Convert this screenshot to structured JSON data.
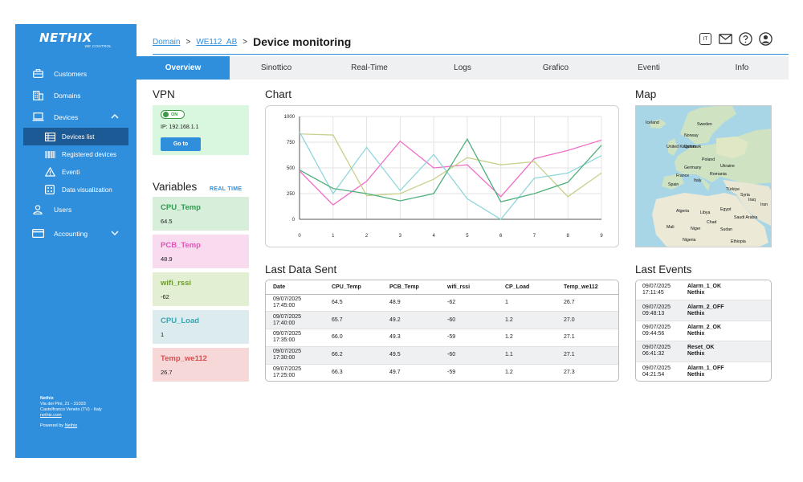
{
  "sidebar": {
    "logo": "NETHIX",
    "logo_tag": "WE CONTROL",
    "items": [
      {
        "label": "Customers"
      },
      {
        "label": "Domains"
      },
      {
        "label": "Devices"
      },
      {
        "label": "Users"
      },
      {
        "label": "Accounting"
      }
    ],
    "sub_items": [
      {
        "label": "Devices list"
      },
      {
        "label": "Registered devices"
      },
      {
        "label": "Eventi"
      },
      {
        "label": "Data visualization"
      }
    ],
    "footer": {
      "company": "Nethix",
      "address1": "Via dei Pini, 21 - 31033",
      "address2": "Castelfranco Veneto (TV) - Italy",
      "site": "nethix.com",
      "powered_prefix": "Powered by",
      "powered_link": "Nethix"
    }
  },
  "header": {
    "crumb1": "Domain",
    "crumb2": "WE112_AB",
    "sep": ">",
    "title": "Device monitoring",
    "lang": "IT"
  },
  "tabs": [
    "Overview",
    "Sinottico",
    "Real-Time",
    "Logs",
    "Grafico",
    "Eventi",
    "Info"
  ],
  "vpn": {
    "title": "VPN",
    "toggle": "ON",
    "ip": "IP: 192.168.1.1",
    "button": "Go to"
  },
  "variables": {
    "title": "Variables",
    "link": "REAL TIME",
    "items": [
      {
        "name": "CPU_Temp",
        "value": "64.5"
      },
      {
        "name": "PCB_Temp",
        "value": "48.9"
      },
      {
        "name": "wifi_rssi",
        "value": "-62"
      },
      {
        "name": "CPU_Load",
        "value": "1"
      },
      {
        "name": "Temp_we112",
        "value": "26.7"
      }
    ]
  },
  "colors": {
    "accent": "#2f8fdc",
    "accent_dark": "#1c5a96",
    "var_bg": [
      "#d7eedb",
      "#f9dbef",
      "#e3efd3",
      "#dcecee",
      "#f6d8d8"
    ],
    "var_fg": [
      "#2f9a4f",
      "#e154b9",
      "#6c9a2e",
      "#3aa2b0",
      "#d65050"
    ]
  },
  "chart": {
    "title": "Chart"
  },
  "chart_data": {
    "type": "line",
    "x": [
      0,
      1,
      2,
      3,
      4,
      5,
      6,
      7,
      8,
      9
    ],
    "xlim": [
      0,
      9
    ],
    "ylim": [
      0,
      1000
    ],
    "yticks": [
      0,
      250,
      500,
      750,
      1000
    ],
    "grid": true,
    "series": [
      {
        "color": "#f06cc8",
        "values": [
          470,
          140,
          370,
          760,
          500,
          530,
          220,
          590,
          670,
          770
        ]
      },
      {
        "color": "#c8d08a",
        "values": [
          830,
          820,
          230,
          250,
          390,
          600,
          530,
          560,
          220,
          450
        ]
      },
      {
        "color": "#8fd6dc",
        "values": [
          850,
          250,
          700,
          280,
          630,
          200,
          0,
          400,
          450,
          620
        ]
      },
      {
        "color": "#4fb07c",
        "values": [
          480,
          300,
          250,
          180,
          250,
          780,
          170,
          250,
          360,
          720
        ]
      }
    ]
  },
  "map": {
    "title": "Map",
    "labels": [
      "Iceland",
      "Sweden",
      "Norway",
      "United Kingdom",
      "Denmark",
      "Germany",
      "Poland",
      "Ukraine",
      "France",
      "Italy",
      "Romania",
      "Spain",
      "Türkiye",
      "Syria",
      "Iraq",
      "Iran",
      "Algeria",
      "Libya",
      "Egypt",
      "Saudi Arabia",
      "Mali",
      "Niger",
      "Chad",
      "Sudan",
      "Nigeria",
      "Ethiopia"
    ]
  },
  "last_data": {
    "title": "Last Data Sent",
    "columns": [
      "Date",
      "CPU_Temp",
      "PCB_Temp",
      "wifi_rssi",
      "CP_Load",
      "Temp_we112"
    ],
    "rows": [
      [
        "09/07/2025",
        "17:45:00",
        "64.5",
        "48.9",
        "-62",
        "1",
        "26.7"
      ],
      [
        "09/07/2025",
        "17:40:00",
        "65.7",
        "49.2",
        "-60",
        "1.2",
        "27.0"
      ],
      [
        "09/07/2025",
        "17:35:00",
        "66.0",
        "49.3",
        "-59",
        "1.2",
        "27.1"
      ],
      [
        "09/07/2025",
        "17:30:00",
        "66.2",
        "49.5",
        "-60",
        "1.1",
        "27.1"
      ],
      [
        "09/07/2025",
        "17:25:00",
        "66.3",
        "49.7",
        "-59",
        "1.2",
        "27.3"
      ]
    ]
  },
  "last_events": {
    "title": "Last Events",
    "items": [
      {
        "date": "09/07/2025",
        "time": "17:11:45",
        "event": "Alarm_1_OK",
        "source": "Nethix"
      },
      {
        "date": "09/07/2025",
        "time": "09:48:13",
        "event": "Alarm_2_OFF",
        "source": "Nethix"
      },
      {
        "date": "09/07/2025",
        "time": "09:44:56",
        "event": "Alarm_2_OK",
        "source": "Nethix"
      },
      {
        "date": "09/07/2025",
        "time": "06:41:32",
        "event": "Reset_OK",
        "source": "Nethix"
      },
      {
        "date": "09/07/2025",
        "time": "04:21:54",
        "event": "Alarm_1_OFF",
        "source": "Nethix"
      }
    ]
  }
}
